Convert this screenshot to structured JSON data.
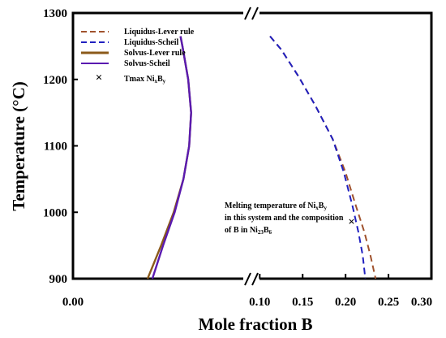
{
  "chart_data": {
    "type": "line",
    "title": "",
    "xlabel": "Mole fraction B",
    "ylabel": "Temperature (°C)",
    "ylim": [
      900,
      1300
    ],
    "y_ticks": [
      "900",
      "1000",
      "1100",
      "1200",
      "1300"
    ],
    "x_axis_break": true,
    "x_ticks_left": [
      "0.00"
    ],
    "x_ticks_right": [
      "0.10",
      "0.15",
      "0.20",
      "0.25",
      "0.30"
    ],
    "xlim_left": [
      0.0,
      0.09
    ],
    "xlim_right": [
      0.095,
      0.3
    ],
    "grid": false,
    "legend_position": "top-left",
    "legend": [
      {
        "label": "Liquidus-Lever rule",
        "style": "dashed",
        "color": "#a0522d"
      },
      {
        "label": "Liquidus-Scheil",
        "style": "dashed",
        "color": "#2020c0"
      },
      {
        "label": "Solvus-Lever rule",
        "style": "solid",
        "color": "#8b5a1a"
      },
      {
        "label": "Solvus-Scheil",
        "style": "solid",
        "color": "#5a1ab0"
      },
      {
        "label_main": "Tmax Ni",
        "label_sub1": "x",
        "label_mid": "B",
        "label_sub2": "y",
        "style": "marker"
      }
    ],
    "series": [
      {
        "name": "Liquidus-Lever rule",
        "style": "dashed",
        "color": "#a0522d",
        "segment": "right",
        "points": [
          [
            0.112,
            1265
          ],
          [
            0.125,
            1245
          ],
          [
            0.145,
            1205
          ],
          [
            0.165,
            1160
          ],
          [
            0.185,
            1110
          ],
          [
            0.2,
            1060
          ],
          [
            0.212,
            1010
          ],
          [
            0.222,
            970
          ],
          [
            0.229,
            935
          ],
          [
            0.235,
            900
          ]
        ]
      },
      {
        "name": "Liquidus-Scheil",
        "style": "dashed",
        "color": "#2020c0",
        "segment": "right",
        "points": [
          [
            0.112,
            1265
          ],
          [
            0.125,
            1245
          ],
          [
            0.145,
            1205
          ],
          [
            0.165,
            1160
          ],
          [
            0.185,
            1110
          ],
          [
            0.198,
            1060
          ],
          [
            0.208,
            1010
          ],
          [
            0.215,
            970
          ],
          [
            0.22,
            935
          ],
          [
            0.223,
            900
          ]
        ]
      },
      {
        "name": "Solvus-Lever rule",
        "style": "solid",
        "color": "#8b5a1a",
        "segment": "left",
        "points": [
          [
            0.0385,
            900
          ],
          [
            0.0455,
            950
          ],
          [
            0.052,
            1000
          ],
          [
            0.057,
            1050
          ],
          [
            0.06,
            1100
          ],
          [
            0.061,
            1150
          ],
          [
            0.0595,
            1200
          ],
          [
            0.0565,
            1250
          ],
          [
            0.0555,
            1265
          ]
        ]
      },
      {
        "name": "Solvus-Scheil",
        "style": "solid",
        "color": "#5a1ab0",
        "segment": "left",
        "points": [
          [
            0.041,
            900
          ],
          [
            0.0465,
            950
          ],
          [
            0.0525,
            1000
          ],
          [
            0.057,
            1050
          ],
          [
            0.06,
            1100
          ],
          [
            0.061,
            1150
          ],
          [
            0.0595,
            1200
          ],
          [
            0.0565,
            1250
          ],
          [
            0.0555,
            1265
          ]
        ]
      }
    ],
    "marker_point": {
      "x": 0.207,
      "y": 985,
      "symbol": "×"
    },
    "annotation": {
      "line1_main": "Melting temperature of Ni",
      "line1_sub1": "x",
      "line1_mid": "B",
      "line1_sub2": "y",
      "line2": "in this system and the composition",
      "line3_main": "of B in Ni",
      "line3_sub1": "23",
      "line3_mid": "B",
      "line3_sub2": "6"
    }
  }
}
